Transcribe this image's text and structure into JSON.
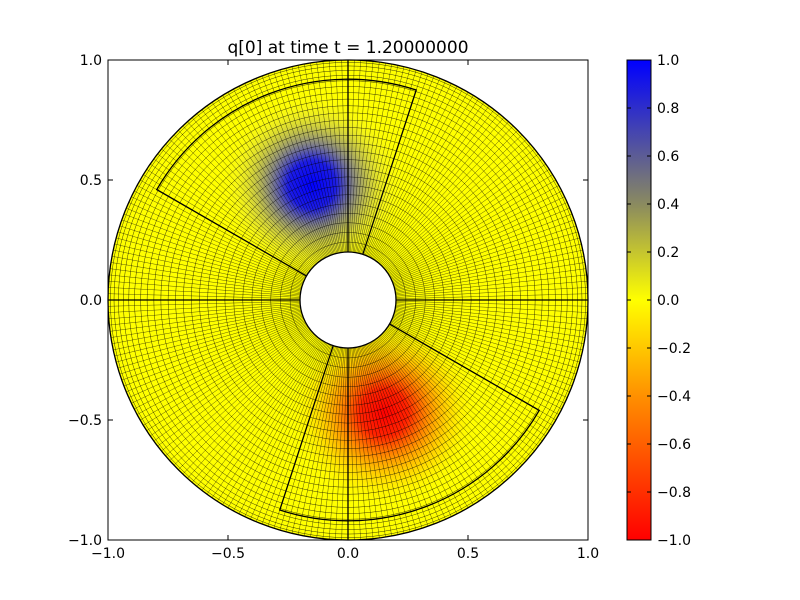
{
  "chart_data": {
    "type": "heatmap",
    "title": "q[0] at time t =      1.20000000",
    "xlabel": "",
    "ylabel": "",
    "xlim": [
      -1.0,
      1.0
    ],
    "ylim": [
      -1.0,
      1.0
    ],
    "x_ticks": [
      "−1.0",
      "−0.5",
      "0.0",
      "0.5",
      "1.0"
    ],
    "x_tick_values": [
      -1.0,
      -0.5,
      0.0,
      0.5,
      1.0
    ],
    "y_ticks": [
      "−1.0",
      "−0.5",
      "0.0",
      "0.5",
      "1.0"
    ],
    "y_tick_values": [
      -1.0,
      -0.5,
      0.0,
      0.5,
      1.0
    ],
    "grid": false,
    "domain": {
      "shape": "annulus",
      "inner_radius": 0.2,
      "outer_radius": 1.0,
      "center": [
        0,
        0
      ]
    },
    "field_features": [
      {
        "name": "positive blob",
        "center": [
          -0.15,
          0.48
        ],
        "value": 1.0,
        "color": "#0000ff"
      },
      {
        "name": "negative blob",
        "center": [
          0.15,
          -0.47
        ],
        "value": -1.0,
        "color": "#ff0000"
      }
    ],
    "background_value": 0.0,
    "colorbar": {
      "min": -1.0,
      "max": 1.0,
      "tick_values": [
        1.0,
        0.8,
        0.6,
        0.4,
        0.2,
        0.0,
        -0.2,
        -0.4,
        -0.6,
        -0.8,
        -1.0
      ],
      "ticks": [
        "1.0",
        "0.8",
        "0.6",
        "0.4",
        "0.2",
        "0.0",
        "−0.2",
        "−0.4",
        "−0.6",
        "−0.8",
        "−1.0"
      ],
      "colors": {
        "top": "#0000ff",
        "upper_mid": "#8a8a60",
        "zero": "#ffff00",
        "lower_mid": "#ff9000",
        "bottom": "#ff0000"
      }
    }
  }
}
